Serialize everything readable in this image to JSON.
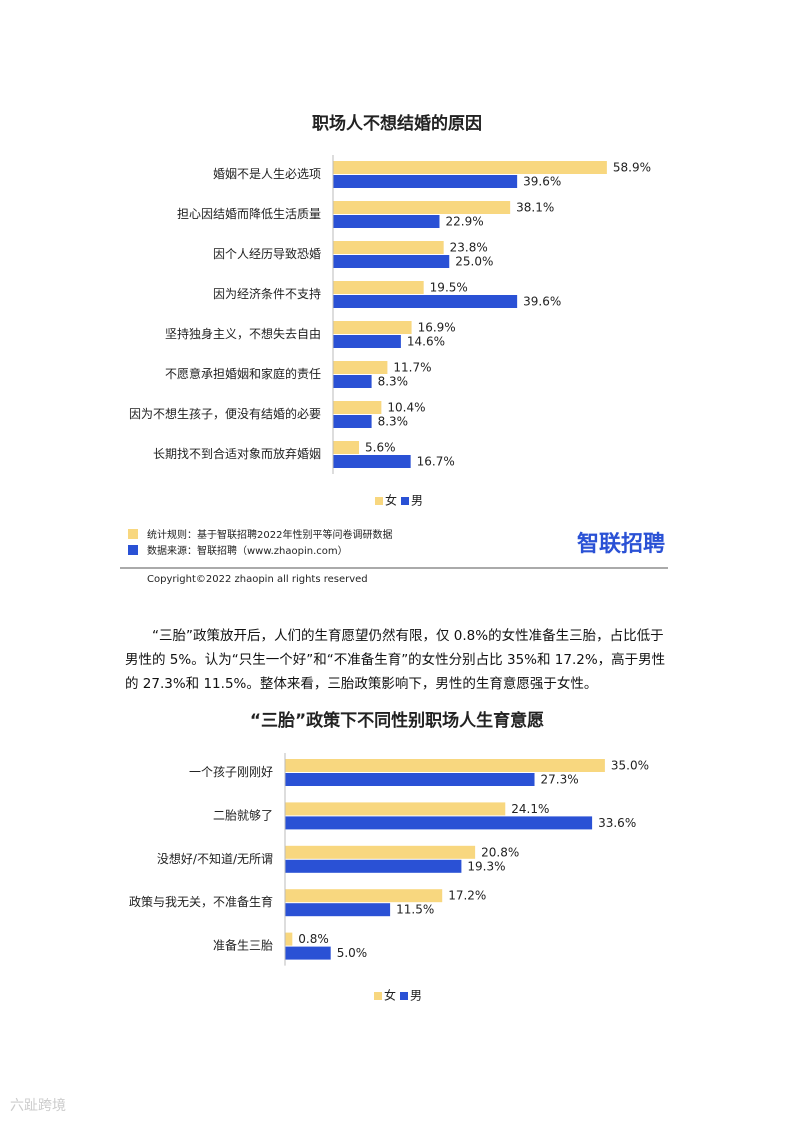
{
  "chart_data": [
    {
      "type": "hbar",
      "title": "职场人不想结婚的原因",
      "categories": [
        "婚姻不是人生必选项",
        "担心因结婚而降低生活质量",
        "因个人经历导致恐婚",
        "因为经济条件不支持",
        "坚持独身主义，不想失去自由",
        "不愿意承担婚姻和家庭的责任",
        "因为不想生孩子，便没有结婚的必要",
        "长期找不到合适对象而放弃婚姻"
      ],
      "series": [
        {
          "name": "女",
          "color": "#f8d77f",
          "values": [
            58.9,
            38.1,
            23.8,
            19.5,
            16.9,
            11.7,
            10.4,
            5.6
          ],
          "value_labels": [
            "58.9%",
            "38.1%",
            "23.8%",
            "19.5%",
            "16.9%",
            "11.7%",
            "10.4%",
            "5.6%"
          ]
        },
        {
          "name": "男",
          "color": "#2a51d5",
          "values": [
            39.6,
            22.9,
            25.0,
            39.6,
            14.6,
            8.3,
            8.3,
            16.7
          ],
          "value_labels": [
            "39.6%",
            "22.9%",
            "25.0%",
            "39.6%",
            "14.6%",
            "8.3%",
            "8.3%",
            "16.7%"
          ]
        }
      ]
    },
    {
      "type": "hbar",
      "title": "“三胎”政策下不同性别职场人生育意愿",
      "categories": [
        "一个孩子刚刚好",
        "二胎就够了",
        "没想好/不知道/无所谓",
        "政策与我无关，不准备生育",
        "准备生三胎"
      ],
      "series": [
        {
          "name": "女",
          "color": "#f8d77f",
          "values": [
            35.0,
            24.1,
            20.8,
            17.2,
            0.8
          ],
          "value_labels": [
            "35.0%",
            "24.1%",
            "20.8%",
            "17.2%",
            "0.8%"
          ]
        },
        {
          "name": "男",
          "color": "#2a51d5",
          "values": [
            27.3,
            33.6,
            19.3,
            11.5,
            5.0
          ],
          "value_labels": [
            "27.3%",
            "33.6%",
            "19.3%",
            "11.5%",
            "5.0%"
          ]
        }
      ]
    }
  ],
  "notes": {
    "rule": "统计规则：基于智联招聘2022年性别平等问卷调研数据",
    "source": "数据来源：智联招聘（www.zhaopin.com）",
    "logo": "智联招聘",
    "copyright": "Copyright©2022 zhaopin all rights reserved"
  },
  "paragraph": "“三胎”政策放开后，人们的生育愿望仍然有限，仅 0.8%的女性准备生三胎，占比低于男性的 5%。认为“只生一个好”和“不准备生育”的女性分别占比 35%和 17.2%，高于男性的 27.3%和 11.5%。整体来看，三胎政策影响下，男性的生育意愿强于女性。",
  "watermark": "六趾跨境"
}
